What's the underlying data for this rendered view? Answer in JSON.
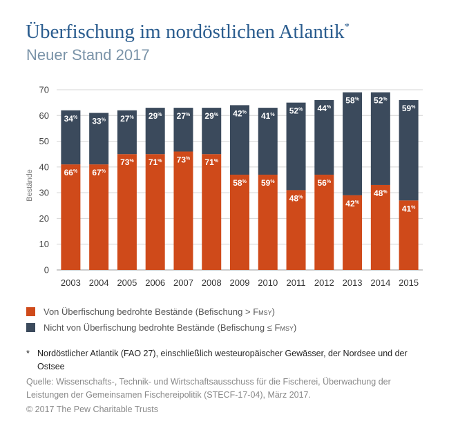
{
  "header": {
    "title": "Überfischung im nordöstlichen Atlantik",
    "title_mark": "*",
    "subtitle": "Neuer Stand 2017"
  },
  "colors": {
    "overfished": "#cf4a1a",
    "not_overfished": "#3b4a5c",
    "title": "#2b5d8f",
    "subtitle": "#7a93a8"
  },
  "legend": {
    "overfished_label": "Von Überfischung bedrohte Bestände (Befischung > ",
    "not_overfished_label": "Nicht von Überfischung bedrohte Bestände (Befischung ≤ ",
    "fmsy": "Fmsy",
    "close": ")"
  },
  "notes": {
    "footnote_mark": "*",
    "footnote": "Nordöstlicher Atlantik (FAO 27), einschließlich westeuropäischer Gewässer, der Nordsee und der Ostsee",
    "source": "Quelle: Wissenschafts-, Technik- und Wirtschaftsausschuss für die Fischerei, Überwachung der Leistungen der Gemeinsamen Fischereipolitik (STECF-17-04), März 2017.",
    "copyright": "© 2017 The Pew Charitable Trusts"
  },
  "chart_data": {
    "type": "bar",
    "stacked": true,
    "ylabel": "Bestände",
    "ylim": [
      0,
      70
    ],
    "yticks": [
      0,
      10,
      20,
      30,
      40,
      50,
      60,
      70
    ],
    "grid": true,
    "percent_suffix": "%",
    "categories": [
      "2003",
      "2004",
      "2005",
      "2006",
      "2007",
      "2008",
      "2009",
      "2010",
      "2011",
      "2012",
      "2013",
      "2014",
      "2015"
    ],
    "series": [
      {
        "name": "Von Überfischung bedrohte Bestände (Befischung > Fmsy)",
        "color": "#cf4a1a",
        "values": [
          41,
          41,
          45,
          45,
          46,
          45,
          37,
          37,
          31,
          37,
          29,
          33,
          27
        ],
        "labels": [
          "66",
          "67",
          "73",
          "71",
          "73",
          "71",
          "58",
          "59",
          "48",
          "56",
          "42",
          "48",
          "41"
        ]
      },
      {
        "name": "Nicht von Überfischung bedrohte Bestände (Befischung ≤ Fmsy)",
        "color": "#3b4a5c",
        "values": [
          21,
          20,
          17,
          18,
          17,
          18,
          27,
          26,
          34,
          29,
          40,
          36,
          39
        ],
        "labels": [
          "34",
          "33",
          "27",
          "29",
          "27",
          "29",
          "42",
          "41",
          "52",
          "44",
          "58",
          "52",
          "59"
        ]
      }
    ]
  }
}
